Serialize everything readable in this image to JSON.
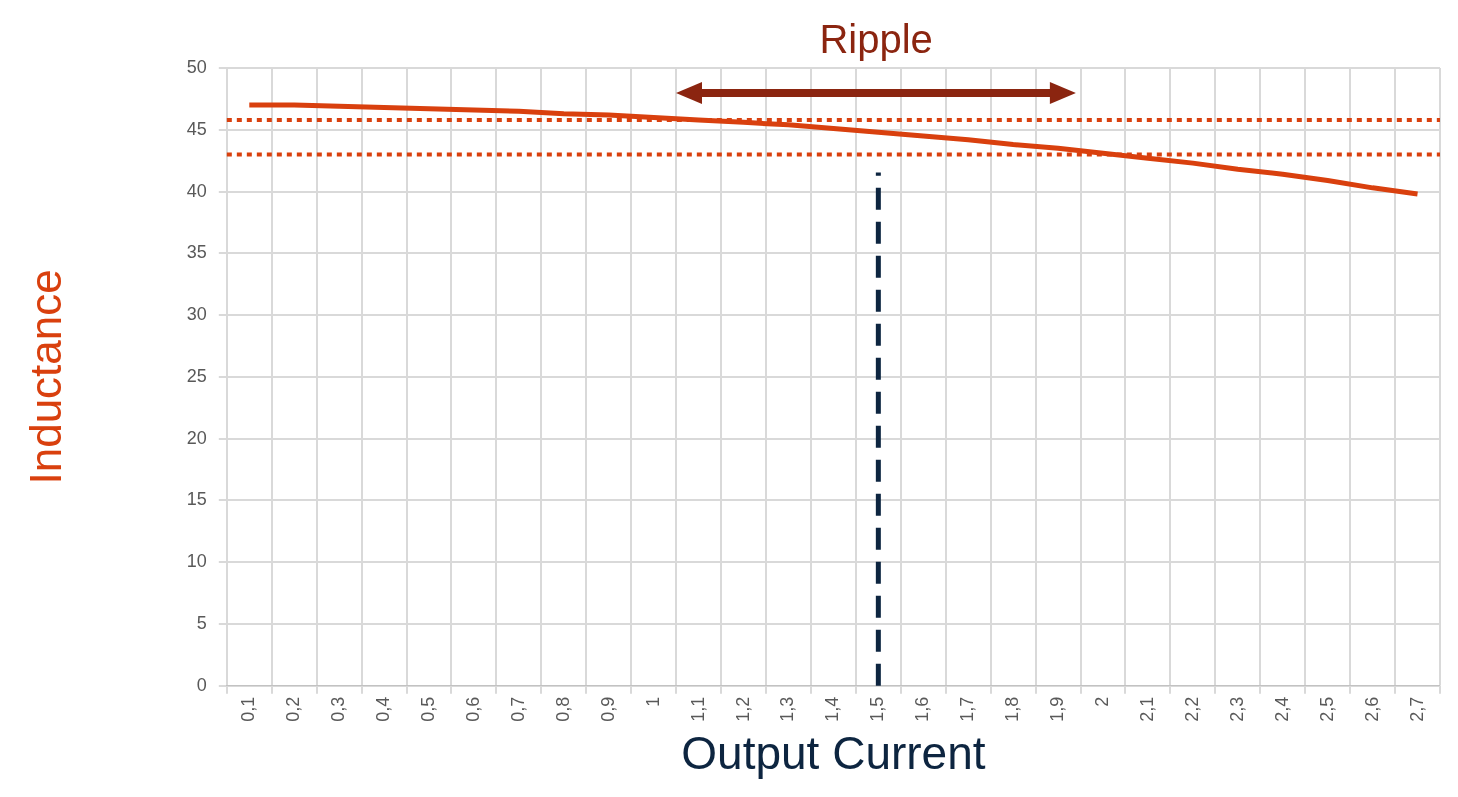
{
  "chart_data": {
    "type": "line",
    "xlabel": "Output Current",
    "ylabel": "Inductance",
    "categories": [
      "0,1",
      "0,2",
      "0,3",
      "0,4",
      "0,5",
      "0,6",
      "0,7",
      "0,8",
      "0,9",
      "1",
      "1,1",
      "1,2",
      "1,3",
      "1,4",
      "1,5",
      "1,6",
      "1,7",
      "1,8",
      "1,9",
      "2",
      "2,1",
      "2,2",
      "2,3",
      "2,4",
      "2,5",
      "2,6",
      "2,7"
    ],
    "series": [
      {
        "color": "#d9400e",
        "values": [
          47.0,
          47.0,
          46.9,
          46.8,
          46.7,
          46.6,
          46.5,
          46.3,
          46.2,
          46.0,
          45.8,
          45.6,
          45.4,
          45.1,
          44.8,
          44.5,
          44.2,
          43.8,
          43.5,
          43.1,
          42.7,
          42.3,
          41.8,
          41.4,
          40.9,
          40.3,
          39.8
        ]
      }
    ],
    "ylim": [
      0,
      50
    ],
    "yticks": [
      0,
      5,
      10,
      15,
      20,
      25,
      30,
      35,
      40,
      45,
      50
    ],
    "grid": true,
    "legend": false,
    "marker": "none",
    "line_style": "solid",
    "ref_lines": [
      {
        "axis": "y",
        "value": 45.8,
        "color": "#d9400e",
        "line_style": "dotted"
      },
      {
        "axis": "y",
        "value": 43,
        "color": "#d9400e",
        "line_style": "dotted"
      },
      {
        "axis": "x",
        "value": "1,5",
        "color": "#0d2540",
        "line_style": "dashed"
      }
    ],
    "annotations": [
      "Ripple"
    ]
  }
}
